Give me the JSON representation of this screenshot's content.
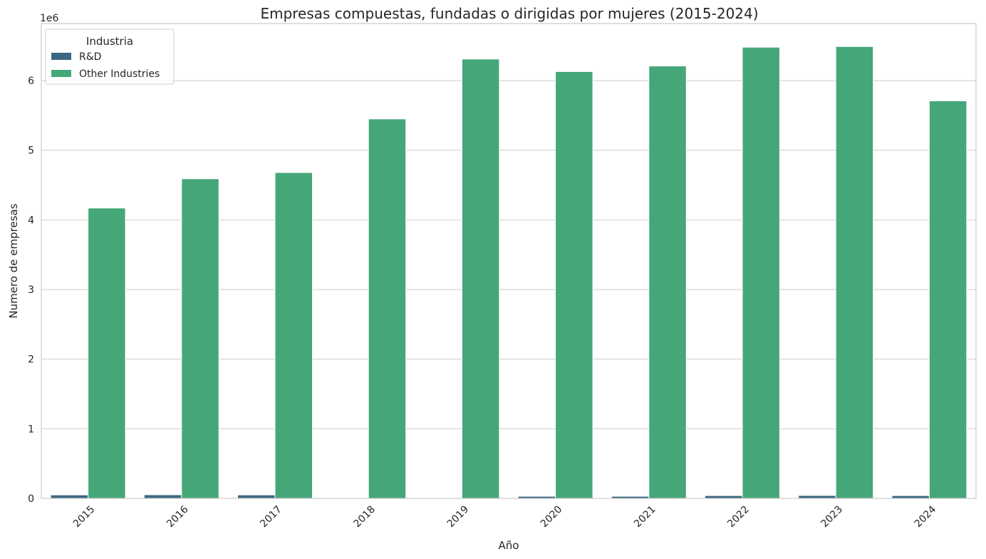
{
  "chart_data": {
    "type": "bar",
    "title": "Empresas compuestas, fundadas o dirigidas por mujeres (2015-2024)",
    "xlabel": "Año",
    "ylabel": "Numero de empresas",
    "y_offset_label": "1e6",
    "categories": [
      "2015",
      "2016",
      "2017",
      "2018",
      "2019",
      "2020",
      "2021",
      "2022",
      "2023",
      "2024"
    ],
    "series": [
      {
        "name": "R&D",
        "color": "#3b6783",
        "values": [
          50000,
          52000,
          50000,
          5000,
          10000,
          30000,
          30000,
          40000,
          42000,
          40000
        ]
      },
      {
        "name": "Other Industries",
        "color": "#45a778",
        "values": [
          4170000,
          4590000,
          4680000,
          5450000,
          6310000,
          6130000,
          6210000,
          6480000,
          6490000,
          5710000
        ]
      }
    ],
    "yticks": [
      0,
      1,
      2,
      3,
      4,
      5,
      6
    ],
    "ylim": [
      0,
      6.82
    ],
    "y_scale_note": "values shown in units of 1e6",
    "grid": "horizontal",
    "legend": {
      "title": "Industria",
      "placement": "top-left"
    }
  }
}
